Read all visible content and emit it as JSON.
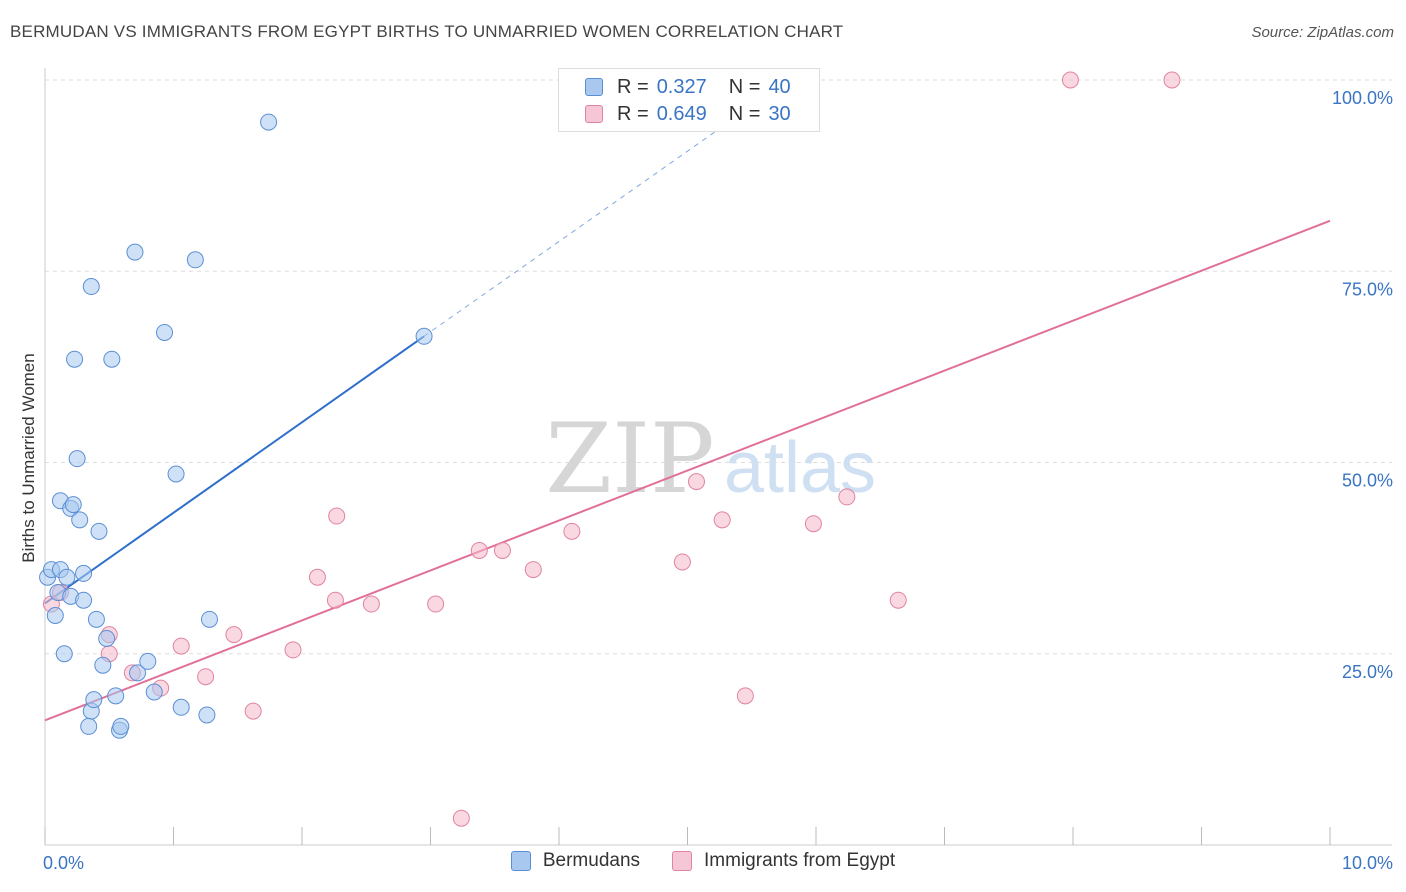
{
  "header": {
    "title": "BERMUDAN VS IMMIGRANTS FROM EGYPT BIRTHS TO UNMARRIED WOMEN CORRELATION CHART",
    "source": "Source: ZipAtlas.com"
  },
  "legend_box": {
    "rows": [
      {
        "r_label": "R =",
        "r_value": "0.327",
        "n_label": "N =",
        "n_value": "40"
      },
      {
        "r_label": "R =",
        "r_value": "0.649",
        "n_label": "N =",
        "n_value": "30"
      }
    ]
  },
  "bottom_legend": {
    "series1": "Bermudans",
    "series2": "Immigrants from Egypt"
  },
  "watermark": {
    "zip": "ZIP",
    "atlas": "atlas"
  },
  "colors": {
    "blue_fill": "#a8c8f0",
    "blue_stroke": "#5b8fd4",
    "blue_line": "#2e6fcc",
    "pink_fill": "#f5b8cb",
    "pink_stroke": "#e0849f",
    "pink_line": "#e0709a",
    "value_text": "#3a74c4",
    "grid": "#dddddd"
  },
  "chart_data": {
    "type": "scatter",
    "title": "BERMUDAN VS IMMIGRANTS FROM EGYPT BIRTHS TO UNMARRIED WOMEN CORRELATION CHART",
    "xlabel": "",
    "ylabel": "Births to Unmarried Women",
    "xlim": [
      0,
      10
    ],
    "ylim": [
      0,
      100
    ],
    "x_tick_labels": [
      "0.0%",
      "10.0%"
    ],
    "y_tick_labels": [
      "25.0%",
      "50.0%",
      "75.0%",
      "100.0%"
    ],
    "y_ticks": [
      25,
      50,
      75,
      100
    ],
    "series": [
      {
        "name": "Bermudans",
        "R": 0.327,
        "N": 40,
        "points": [
          [
            0.02,
            35.0
          ],
          [
            0.05,
            36.0
          ],
          [
            0.08,
            30.0
          ],
          [
            0.1,
            33.0
          ],
          [
            0.12,
            36.0
          ],
          [
            0.15,
            25.0
          ],
          [
            0.17,
            35.0
          ],
          [
            0.2,
            32.5
          ],
          [
            0.12,
            45.0
          ],
          [
            0.2,
            44.0
          ],
          [
            0.22,
            44.5
          ],
          [
            0.23,
            63.5
          ],
          [
            0.25,
            50.5
          ],
          [
            0.27,
            42.5
          ],
          [
            0.3,
            32.0
          ],
          [
            0.3,
            35.5
          ],
          [
            0.36,
            73.0
          ],
          [
            0.36,
            17.5
          ],
          [
            0.38,
            19.0
          ],
          [
            0.4,
            29.5
          ],
          [
            0.42,
            41.0
          ],
          [
            0.45,
            23.5
          ],
          [
            0.48,
            27.0
          ],
          [
            0.52,
            63.5
          ],
          [
            0.55,
            19.5
          ],
          [
            0.58,
            15.0
          ],
          [
            0.59,
            15.5
          ],
          [
            0.7,
            77.5
          ],
          [
            0.72,
            22.5
          ],
          [
            0.8,
            24.0
          ],
          [
            0.85,
            20.0
          ],
          [
            0.93,
            67.0
          ],
          [
            1.02,
            48.5
          ],
          [
            1.06,
            18.0
          ],
          [
            1.17,
            76.5
          ],
          [
            1.26,
            17.0
          ],
          [
            1.28,
            29.5
          ],
          [
            1.74,
            94.5
          ],
          [
            2.95,
            66.5
          ],
          [
            0.34,
            15.5
          ]
        ],
        "trend": {
          "x": [
            0.0,
            2.95
          ],
          "y": [
            31.6,
            66.5
          ],
          "dashed_to": [
            5.5,
            96.6
          ]
        }
      },
      {
        "name": "Immigrants from Egypt",
        "R": 0.649,
        "N": 30,
        "points": [
          [
            0.05,
            31.5
          ],
          [
            0.12,
            33.0
          ],
          [
            0.5,
            27.5
          ],
          [
            0.5,
            25.0
          ],
          [
            0.68,
            22.5
          ],
          [
            0.9,
            20.5
          ],
          [
            1.06,
            26.0
          ],
          [
            1.25,
            22.0
          ],
          [
            1.47,
            27.5
          ],
          [
            1.62,
            17.5
          ],
          [
            1.93,
            25.5
          ],
          [
            2.12,
            35.0
          ],
          [
            2.27,
            43.0
          ],
          [
            2.26,
            32.0
          ],
          [
            2.54,
            31.5
          ],
          [
            3.04,
            31.5
          ],
          [
            3.24,
            3.5
          ],
          [
            3.38,
            38.5
          ],
          [
            3.56,
            38.5
          ],
          [
            3.8,
            36.0
          ],
          [
            4.1,
            41.0
          ],
          [
            4.96,
            37.0
          ],
          [
            5.07,
            47.5
          ],
          [
            5.27,
            42.5
          ],
          [
            5.45,
            19.5
          ],
          [
            5.98,
            42.0
          ],
          [
            6.24,
            45.5
          ],
          [
            6.64,
            32.0
          ],
          [
            7.98,
            100.0
          ],
          [
            8.77,
            100.0
          ]
        ],
        "trend": {
          "x": [
            0.0,
            10.0
          ],
          "y": [
            16.3,
            81.6
          ]
        }
      }
    ]
  }
}
